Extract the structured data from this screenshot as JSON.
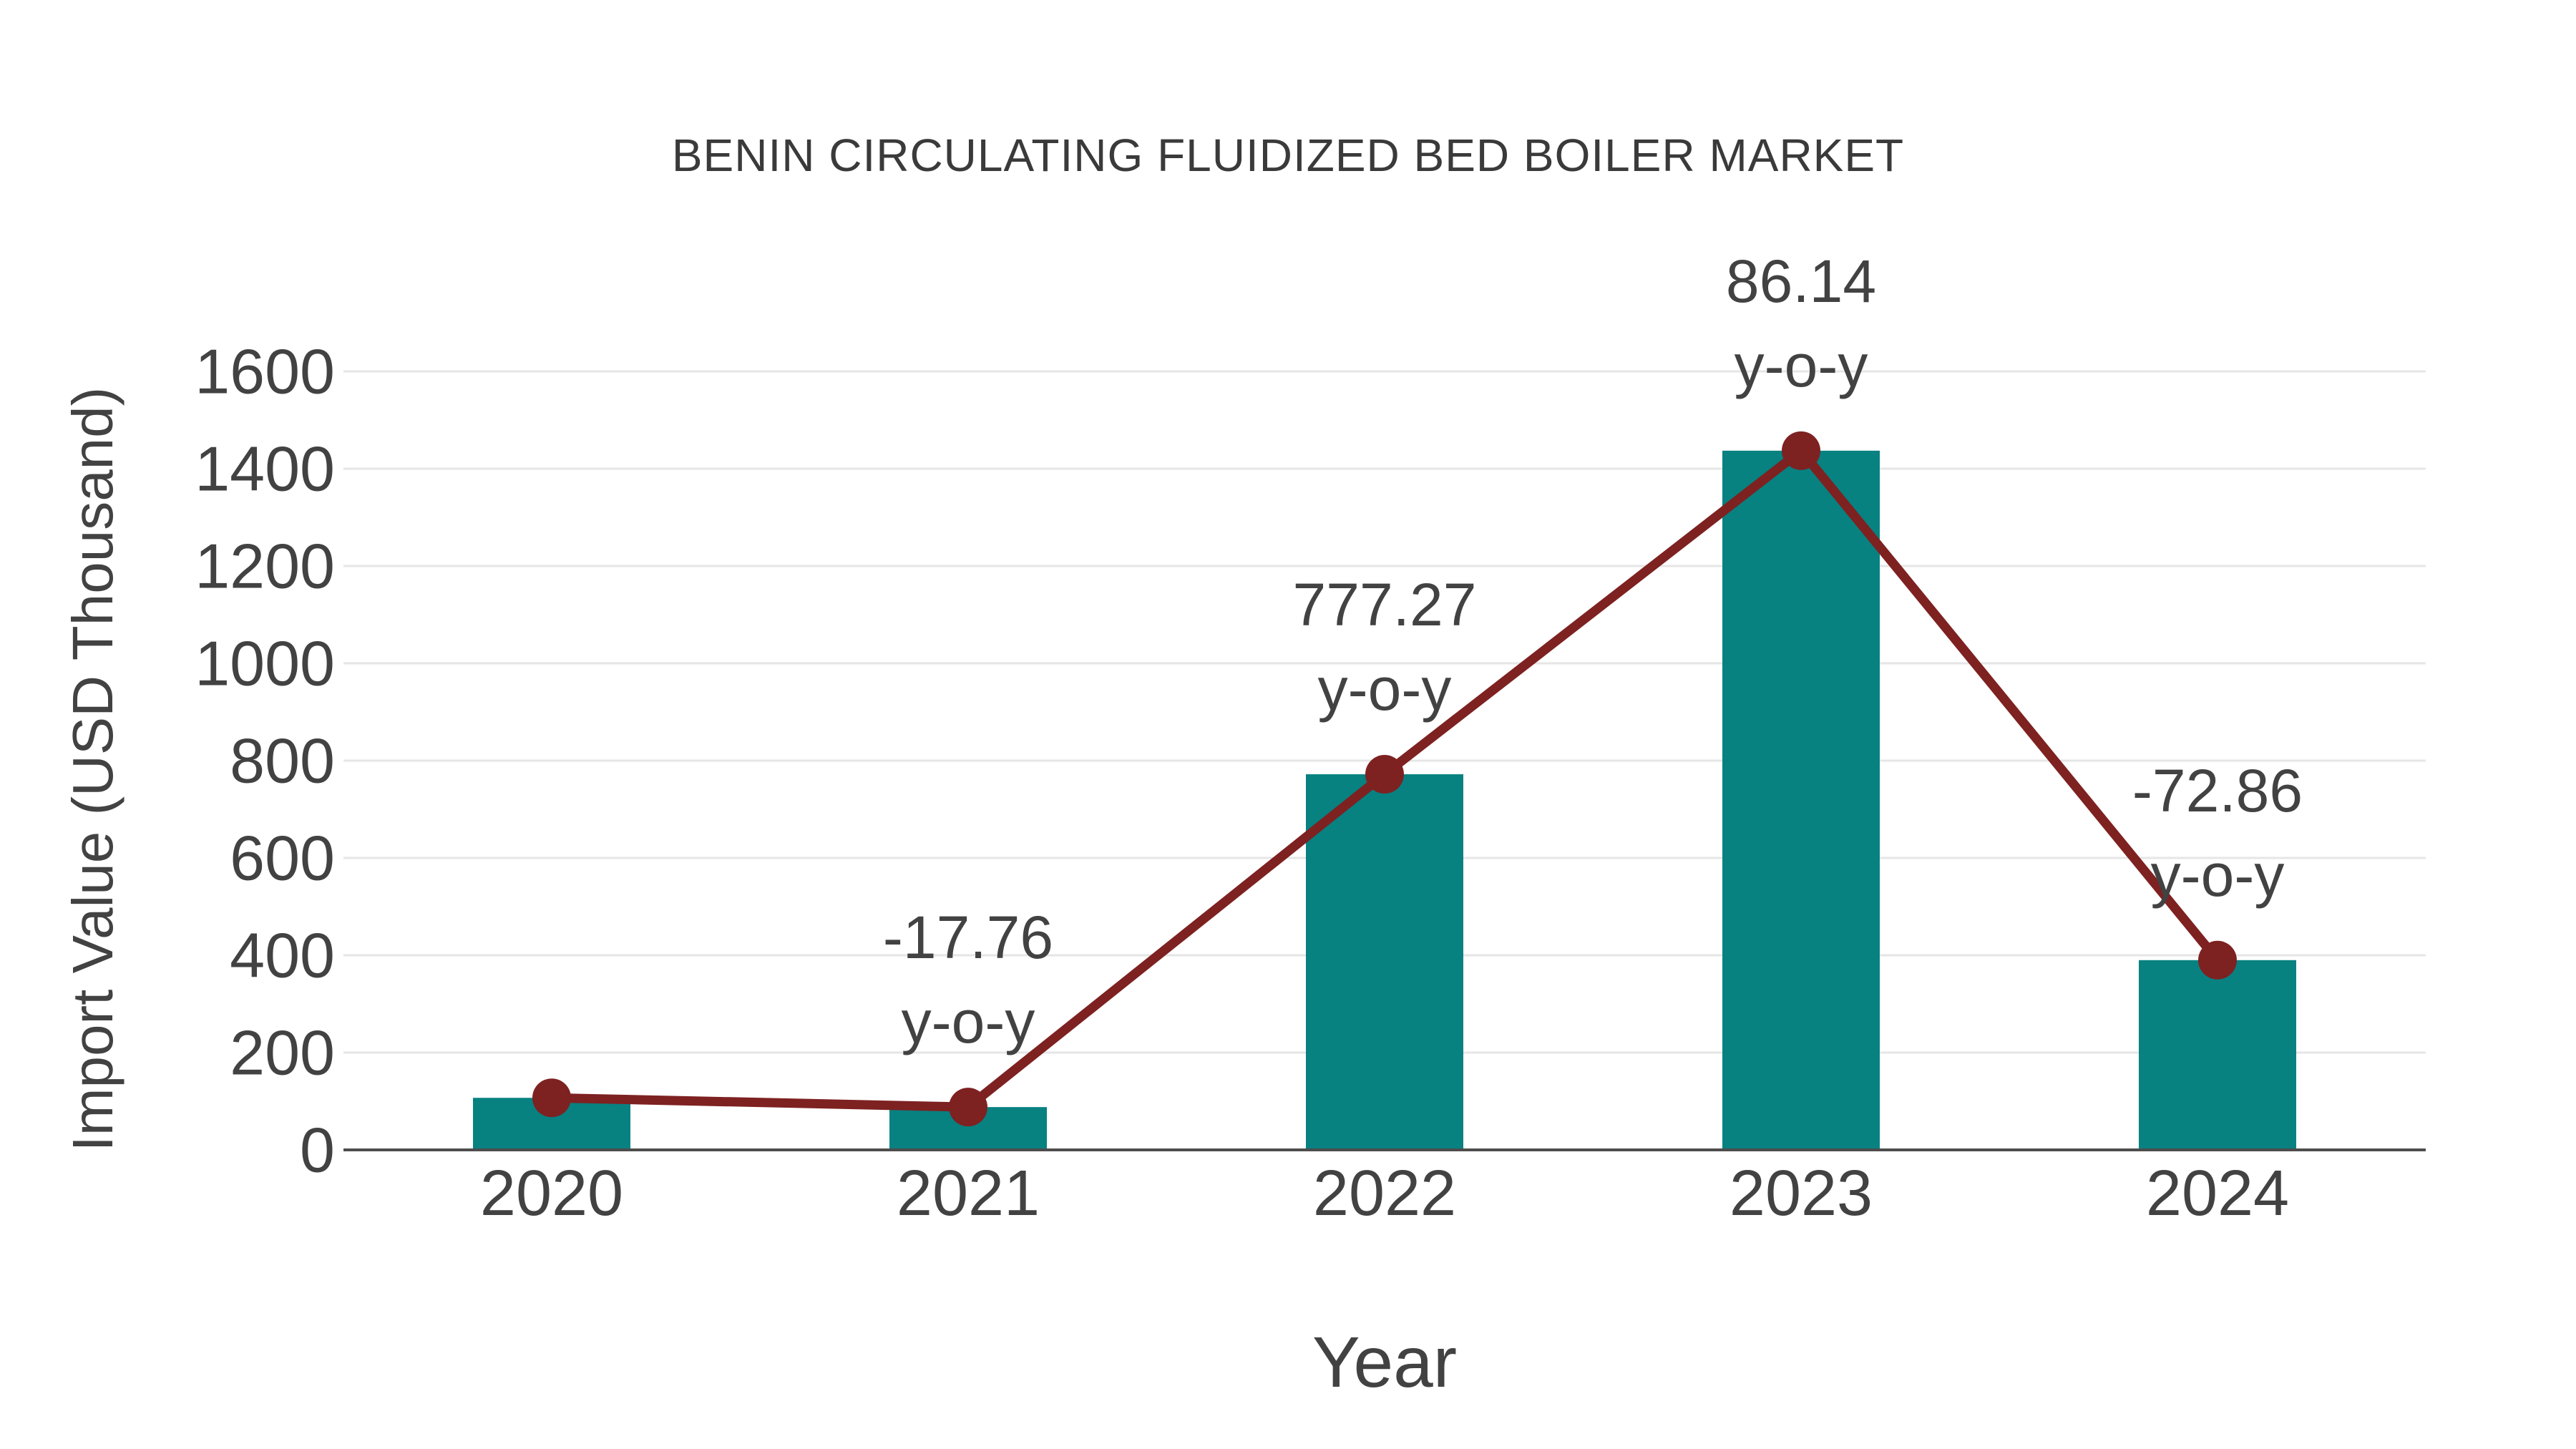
{
  "title": "BENIN CIRCULATING FLUIDIZED BED BOILER MARKET",
  "chart_data": {
    "type": "bar",
    "title": "BENIN CIRCULATING FLUIDIZED BED BOILER MARKET",
    "xlabel": "Year",
    "ylabel": "Import Value (USD Thousand)",
    "categories": [
      "2020",
      "2021",
      "2022",
      "2023",
      "2024"
    ],
    "series": [
      {
        "name": "Import Value (USD Thousand)",
        "type": "bar",
        "color": "#088181",
        "values": [
          107,
          88,
          772,
          1437,
          390
        ]
      },
      {
        "name": "y-o-y",
        "type": "line",
        "color": "#7e2121",
        "markers": true,
        "values": [
          107,
          88,
          772,
          1437,
          390
        ]
      }
    ],
    "annotations": [
      {
        "category": "2021",
        "value_label": "-17.76",
        "suffix": "y-o-y"
      },
      {
        "category": "2022",
        "value_label": "777.27",
        "suffix": "y-o-y"
      },
      {
        "category": "2023",
        "value_label": "86.14",
        "suffix": "y-o-y"
      },
      {
        "category": "2024",
        "value_label": "-72.86",
        "suffix": "y-o-y"
      }
    ],
    "ylim": [
      0,
      1600
    ],
    "yticks": [
      0,
      200,
      400,
      600,
      800,
      1000,
      1200,
      1400,
      1600
    ],
    "grid": true,
    "legend": false
  },
  "colors": {
    "bar": "#088181",
    "line": "#7e2121",
    "marker": "#7e2121",
    "grid": "#e6e6e6",
    "axis": "#4d4d4d",
    "tick_text": "#424242",
    "title_text": "#3a3a3a",
    "background": "#ffffff"
  }
}
